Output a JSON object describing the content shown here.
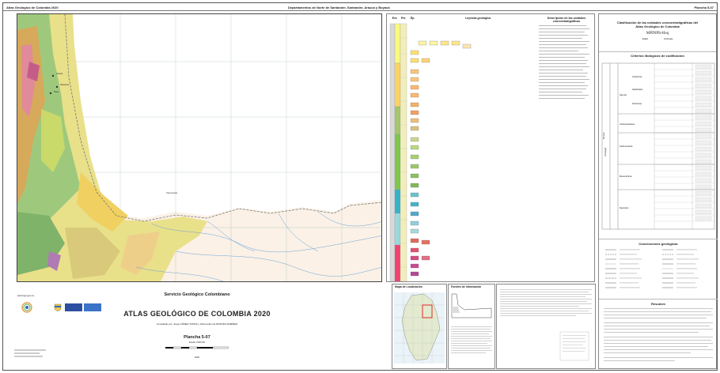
{
  "header": {
    "left": "Atlas Geológico de Colombia 2020",
    "center": "Departamentos de Norte de Santander, Santander, Arauca y Boyacá",
    "right": "Plancha 5-07"
  },
  "map": {
    "place_label": "Venezuela",
    "town_labels": [
      "Arauca",
      "Saravena",
      "Tame"
    ]
  },
  "legend": {
    "col_headers": [
      "Era",
      "Per.",
      "Ép."
    ],
    "geologic_legend_title": "Leyenda geológica",
    "description_title": "Descripción de las unidades cronoestratigráficas"
  },
  "right_panel": {
    "classification_title": "Clasificación de las unidades cronoestratigráficas del Atlas Geológico de Colombia",
    "formula": "MPINPIr-Hsq",
    "edad_label": "Edad",
    "litologia_label": "Litología",
    "criterios_title": "Criterios litológicos de codificación",
    "rocas_label": "Rocas",
    "litologia_side": "Litología",
    "groups": [
      {
        "name": "Ígneas",
        "sub": [
          "Volcánicas",
          "Hipabisales",
          "Plutónicas"
        ]
      },
      {
        "name": "Volcanoclásticas",
        "sub": []
      },
      {
        "name": "Sedimentarias",
        "sub": []
      },
      {
        "name": "Metamórficas",
        "sub": []
      },
      {
        "name": "Depósitos",
        "sub": []
      }
    ],
    "convenciones_title": "Convenciones geológicas",
    "resumen_title": "Resumen"
  },
  "footer": {
    "org": "Servicio Geológico Colombiano",
    "title": "ATLAS GEOLÓGICO DE COLOMBIA 2020",
    "compiled": "Compilado por: Jorge GÓMEZ TAPIAS y Nohora Emma MONTES RAMÍREZ",
    "plate": "Plancha 5-07",
    "scale": "Escala 1:500 000",
    "year": "2020",
    "website": "www.sgc.gov.co",
    "inset_map_title": "Mapa de Localización",
    "inset_sources_title": "Fuentes de información"
  }
}
